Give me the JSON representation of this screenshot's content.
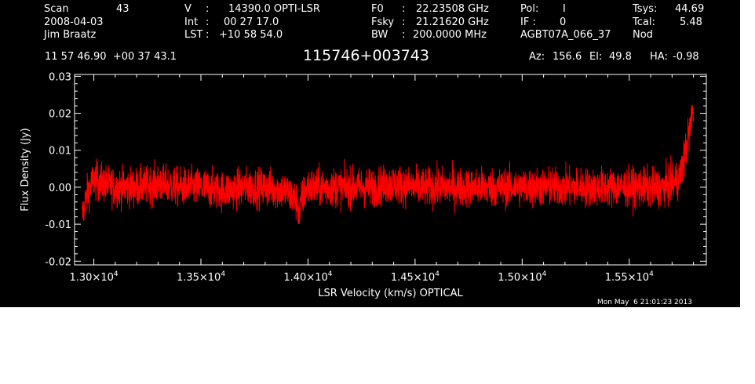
{
  "header": {
    "scan_label": "Scan",
    "scan_value": "43",
    "date": "2008-04-03",
    "observer": "Jim Braatz",
    "velocity_label": "V",
    "velocity_value": "14390.0 OPTI-LSR",
    "int_label": "Int",
    "int_value": "00 27 17.0",
    "lst_label": "LST",
    "lst_value": "+10 58 54.0",
    "f0_label": "F0",
    "f0_value": "22.23508 GHz",
    "fsky_label": "Fsky",
    "fsky_value": "21.21620 GHz",
    "bw_label": "BW",
    "bw_value": "200.0000 MHz",
    "pol_label": "Pol:",
    "pol_value": "I",
    "if_label": "IF :",
    "if_value": "0",
    "project": "AGBT07A_066_37",
    "tsys_label": "Tsys:",
    "tsys_value": "44.69",
    "tcal_label": "Tcal:",
    "tcal_value": "5.48",
    "mode": "Nod"
  },
  "coords": "11 57 46.90  +00 37 43.1",
  "source": "115746+003743",
  "az_label": "Az:",
  "az_value": "156.6",
  "el_label": "El:",
  "el_value": "49.8",
  "ha_label": "HA:",
  "ha_value": "-0.98",
  "timestamp": "Mon May  6 21:01:23 2013",
  "colors": {
    "background": "#000000",
    "axes": "#ffffff",
    "trace": "#ff0000"
  },
  "chart_data": {
    "type": "line",
    "xlabel": "LSR Velocity (km/s) OPTICAL",
    "ylabel": "Flux Density (Jy)",
    "xlim": [
      12910,
      15860
    ],
    "ylim": [
      -0.021,
      0.0305
    ],
    "xticks": [
      {
        "value": 13000,
        "mantissa": "1.30",
        "exponent": "4"
      },
      {
        "value": 13500,
        "mantissa": "1.35",
        "exponent": "4"
      },
      {
        "value": 14000,
        "mantissa": "1.40",
        "exponent": "4"
      },
      {
        "value": 14500,
        "mantissa": "1.45",
        "exponent": "4"
      },
      {
        "value": 15000,
        "mantissa": "1.50",
        "exponent": "4"
      },
      {
        "value": 15500,
        "mantissa": "1.55",
        "exponent": "4"
      }
    ],
    "yticks": [
      {
        "value": -0.02,
        "label": "-0.02"
      },
      {
        "value": -0.01,
        "label": "-0.01"
      },
      {
        "value": 0.0,
        "label": "0.00"
      },
      {
        "value": 0.01,
        "label": "0.01"
      },
      {
        "value": 0.02,
        "label": "0.02"
      },
      {
        "value": 0.03,
        "label": "0.03"
      }
    ],
    "grid": false,
    "series": [
      {
        "x": [
          12945,
          12960,
          12980,
          13000,
          13050,
          13100,
          13200,
          13300,
          13400,
          13500,
          13600,
          13700,
          13800,
          13900,
          13950,
          13960,
          13970,
          14000,
          14100,
          14200,
          14300,
          14400,
          14500,
          14600,
          14700,
          14800,
          14900,
          15000,
          15100,
          15200,
          15300,
          15400,
          15500,
          15550,
          15600,
          15650,
          15700,
          15730,
          15740,
          15750,
          15760,
          15770,
          15780,
          15790,
          15800
        ],
        "y": [
          -0.008,
          -0.004,
          0.0,
          0.002,
          0.001,
          0.0,
          0.0,
          0.001,
          0.0,
          0.0,
          -0.001,
          0.0,
          0.0,
          -0.001,
          -0.004,
          -0.008,
          -0.003,
          0.0,
          0.0,
          0.0,
          0.0,
          0.001,
          0.0,
          0.0,
          0.0,
          0.0,
          0.0,
          0.0,
          0.0,
          0.0,
          0.0,
          0.0,
          0.0,
          0.0,
          0.0,
          0.0,
          0.001,
          0.002,
          0.004,
          0.006,
          0.009,
          0.012,
          0.015,
          0.018,
          0.022
        ],
        "noise_amplitude": 0.005
      }
    ]
  }
}
